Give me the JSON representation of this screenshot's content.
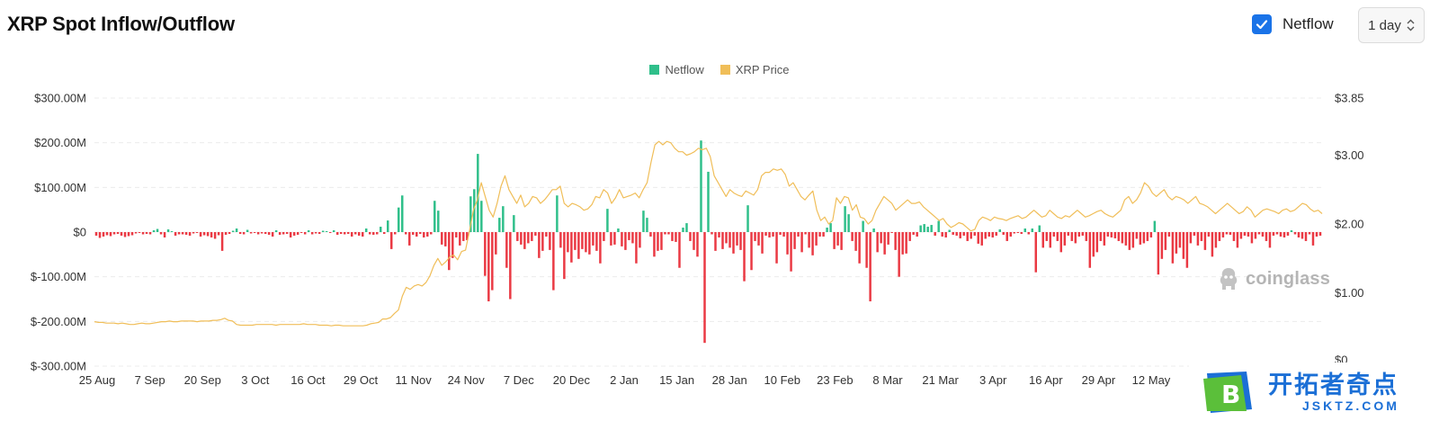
{
  "header": {
    "title": "XRP Spot Inflow/Outflow",
    "netflow_toggle": {
      "label": "Netflow",
      "checked": true
    },
    "interval": {
      "value": "1 day"
    }
  },
  "legend": [
    {
      "label": "Netflow",
      "color": "#2fbf8a"
    },
    {
      "label": "XRP Price",
      "color": "#f0be59"
    }
  ],
  "watermark": "coinglass",
  "badge": {
    "chinese": "开拓者奇点",
    "url": "JSKTZ.COM"
  },
  "colors": {
    "positive": "#2fbf8a",
    "negative": "#ea3943",
    "price": "#f0be59",
    "grid": "#ececec"
  },
  "chart_data": {
    "type": "bar",
    "title": "XRP Spot Inflow/Outflow",
    "x_ticks": [
      "25 Aug",
      "7 Sep",
      "20 Sep",
      "3 Oct",
      "16 Oct",
      "29 Oct",
      "11 Nov",
      "24 Nov",
      "7 Dec",
      "20 Dec",
      "2 Jan",
      "15 Jan",
      "28 Jan",
      "10 Feb",
      "23 Feb",
      "8 Mar",
      "21 Mar",
      "3 Apr",
      "16 Apr",
      "29 Apr",
      "12 May"
    ],
    "y_left_ticks": [
      "$300.00M",
      "$200.00M",
      "$100.00M",
      "$0",
      "$-100.00M",
      "$-200.00M",
      "$-300.00M"
    ],
    "y_left_range": [
      -300,
      300
    ],
    "y_right_ticks": [
      "$3.85",
      "$3.00",
      "$2.00",
      "$1.00",
      "$0"
    ],
    "y_right_range": [
      0,
      3.85
    ],
    "grid": true,
    "legend_position": "top-center",
    "series": [
      {
        "name": "Netflow",
        "kind": "bar",
        "unit": "M USD",
        "values": [
          -8,
          -13,
          -10,
          -7,
          -9,
          -5,
          -4,
          -8,
          -11,
          -9,
          -7,
          -3,
          -2,
          -5,
          -4,
          -5,
          4,
          7,
          -5,
          -12,
          6,
          2,
          -8,
          -5,
          -5,
          -6,
          -8,
          -3,
          -2,
          -10,
          -7,
          -9,
          -12,
          -15,
          -7,
          -42,
          -6,
          -4,
          3,
          8,
          -4,
          -5,
          5,
          -3,
          -2,
          -5,
          -3,
          -4,
          -6,
          -10,
          4,
          -6,
          -5,
          -4,
          -12,
          -8,
          -6,
          -2,
          -5,
          4,
          -5,
          -3,
          -4,
          3,
          2,
          -2,
          4,
          -6,
          -4,
          -5,
          -4,
          -10,
          -5,
          -8,
          -10,
          8,
          -5,
          -6,
          -5,
          12,
          -4,
          26,
          -38,
          -5,
          55,
          82,
          -5,
          -30,
          -6,
          -10,
          -4,
          -12,
          -10,
          -5,
          70,
          48,
          -28,
          -32,
          -85,
          -58,
          -12,
          -30,
          -20,
          -18,
          80,
          96,
          175,
          70,
          -98,
          -155,
          -130,
          -50,
          32,
          58,
          -80,
          -150,
          38,
          -20,
          -28,
          -38,
          -25,
          -20,
          -8,
          -58,
          -42,
          -10,
          -40,
          -130,
          82,
          -35,
          -105,
          -45,
          -68,
          -40,
          -60,
          -38,
          -45,
          -50,
          -30,
          -42,
          -70,
          -20,
          52,
          -30,
          -28,
          8,
          -32,
          -40,
          -18,
          -25,
          -70,
          -35,
          48,
          32,
          -10,
          -55,
          -42,
          -40,
          -5,
          -5,
          -20,
          -22,
          -80,
          10,
          20,
          -20,
          -40,
          -55,
          205,
          -248,
          135,
          -5,
          -42,
          -12,
          -38,
          -25,
          -35,
          -48,
          -30,
          -40,
          -110,
          60,
          -85,
          -20,
          -30,
          -48,
          -8,
          -12,
          -10,
          -70,
          -6,
          -10,
          -50,
          -88,
          -38,
          -10,
          -45,
          -5,
          -35,
          -52,
          -30,
          -10,
          -10,
          10,
          20,
          -38,
          -30,
          -40,
          58,
          40,
          -20,
          -42,
          -70,
          25,
          -80,
          -155,
          8,
          -45,
          -25,
          -50,
          -28,
          -2,
          -40,
          -100,
          -50,
          -48,
          -20,
          -6,
          -10,
          15,
          18,
          12,
          16,
          -8,
          25,
          -10,
          -12,
          5,
          -6,
          -8,
          -14,
          -8,
          -20,
          -15,
          -8,
          -26,
          -30,
          -15,
          -10,
          -12,
          -8,
          6,
          -6,
          -20,
          -10,
          -3,
          -2,
          -4,
          8,
          -5,
          8,
          -90,
          15,
          -35,
          -20,
          -35,
          -10,
          -20,
          -45,
          -30,
          -8,
          -20,
          -25,
          -10,
          -8,
          -20,
          -80,
          -55,
          -45,
          -20,
          -30,
          -10,
          -12,
          -14,
          -20,
          -25,
          -30,
          -40,
          -35,
          -15,
          -28,
          -25,
          -20,
          -12,
          25,
          -95,
          -60,
          -40,
          -10,
          -70,
          -48,
          -35,
          -60,
          -80,
          -25,
          -8,
          -30,
          -20,
          -40,
          -10,
          -55,
          -35,
          -20,
          -12,
          -5,
          -6,
          -20,
          -35,
          -15,
          -8,
          -10,
          -25,
          -15,
          -5,
          -10,
          -20,
          -35,
          -8,
          -5,
          -10,
          -12,
          -8,
          4,
          -5,
          -12,
          -15,
          -20,
          -5,
          -30,
          -10,
          -8
        ]
      },
      {
        "name": "XRP Price",
        "kind": "line",
        "unit": "USD",
        "values": [
          0.58,
          0.57,
          0.57,
          0.56,
          0.56,
          0.56,
          0.55,
          0.56,
          0.55,
          0.54,
          0.54,
          0.55,
          0.56,
          0.55,
          0.55,
          0.56,
          0.57,
          0.58,
          0.58,
          0.59,
          0.58,
          0.58,
          0.59,
          0.59,
          0.59,
          0.59,
          0.58,
          0.59,
          0.59,
          0.59,
          0.6,
          0.6,
          0.61,
          0.63,
          0.6,
          0.59,
          0.54,
          0.53,
          0.53,
          0.53,
          0.53,
          0.54,
          0.54,
          0.54,
          0.54,
          0.54,
          0.53,
          0.54,
          0.54,
          0.54,
          0.54,
          0.54,
          0.54,
          0.55,
          0.54,
          0.54,
          0.54,
          0.53,
          0.53,
          0.53,
          0.52,
          0.53,
          0.53,
          0.52,
          0.52,
          0.52,
          0.52,
          0.52,
          0.52,
          0.53,
          0.55,
          0.56,
          0.57,
          0.62,
          0.62,
          0.64,
          0.7,
          0.75,
          0.95,
          1.08,
          1.05,
          1.1,
          1.12,
          1.1,
          1.15,
          1.25,
          1.4,
          1.5,
          1.4,
          1.45,
          1.52,
          1.55,
          1.48,
          1.6,
          1.62,
          1.9,
          2.2,
          2.35,
          2.6,
          2.4,
          2.2,
          2.1,
          2.3,
          2.55,
          2.7,
          2.5,
          2.4,
          2.3,
          2.42,
          2.25,
          2.3,
          2.4,
          2.38,
          2.3,
          2.35,
          2.42,
          2.5,
          2.5,
          2.55,
          2.3,
          2.25,
          2.3,
          2.28,
          2.25,
          2.2,
          2.22,
          2.28,
          2.4,
          2.38,
          2.5,
          2.45,
          2.3,
          2.38,
          2.5,
          2.38,
          2.4,
          2.42,
          2.45,
          2.38,
          2.5,
          2.6,
          2.9,
          3.15,
          3.2,
          3.15,
          3.2,
          3.18,
          3.1,
          3.05,
          3.05,
          3.0,
          3.02,
          3.05,
          3.1,
          3.08,
          3.1,
          2.98,
          2.7,
          2.6,
          2.5,
          2.4,
          2.5,
          2.45,
          2.42,
          2.4,
          2.48,
          2.45,
          2.42,
          2.5,
          2.7,
          2.75,
          2.75,
          2.8,
          2.78,
          2.8,
          2.72,
          2.55,
          2.6,
          2.5,
          2.4,
          2.35,
          2.42,
          2.48,
          2.2,
          2.05,
          2.1,
          2.0,
          2.05,
          2.38,
          2.3,
          2.4,
          2.38,
          2.2,
          2.28,
          2.1,
          2.08,
          2.0,
          2.05,
          2.2,
          2.3,
          2.4,
          2.35,
          2.3,
          2.2,
          2.25,
          2.3,
          2.35,
          2.3,
          2.3,
          2.32,
          2.25,
          2.2,
          2.15,
          2.1,
          2.05,
          2.08,
          2.0,
          1.95,
          1.98,
          2.02,
          2.0,
          1.95,
          1.9,
          1.92,
          2.05,
          2.1,
          2.08,
          2.05,
          2.1,
          2.08,
          2.07,
          2.05,
          2.08,
          2.1,
          2.12,
          2.08,
          2.1,
          2.15,
          2.2,
          2.15,
          2.1,
          2.12,
          2.2,
          2.15,
          2.1,
          2.08,
          2.12,
          2.1,
          2.15,
          2.2,
          2.15,
          2.1,
          2.12,
          2.15,
          2.18,
          2.2,
          2.15,
          2.12,
          2.1,
          2.15,
          2.2,
          2.35,
          2.4,
          2.3,
          2.35,
          2.45,
          2.6,
          2.55,
          2.45,
          2.4,
          2.45,
          2.5,
          2.4,
          2.35,
          2.4,
          2.38,
          2.35,
          2.3,
          2.35,
          2.4,
          2.3,
          2.28,
          2.25,
          2.2,
          2.15,
          2.2,
          2.25,
          2.3,
          2.25,
          2.2,
          2.15,
          2.18,
          2.25,
          2.2,
          2.1,
          2.15,
          2.2,
          2.22,
          2.2,
          2.18,
          2.15,
          2.2,
          2.22,
          2.18,
          2.2,
          2.25,
          2.3,
          2.28,
          2.22,
          2.18,
          2.2,
          2.15
        ]
      }
    ]
  }
}
